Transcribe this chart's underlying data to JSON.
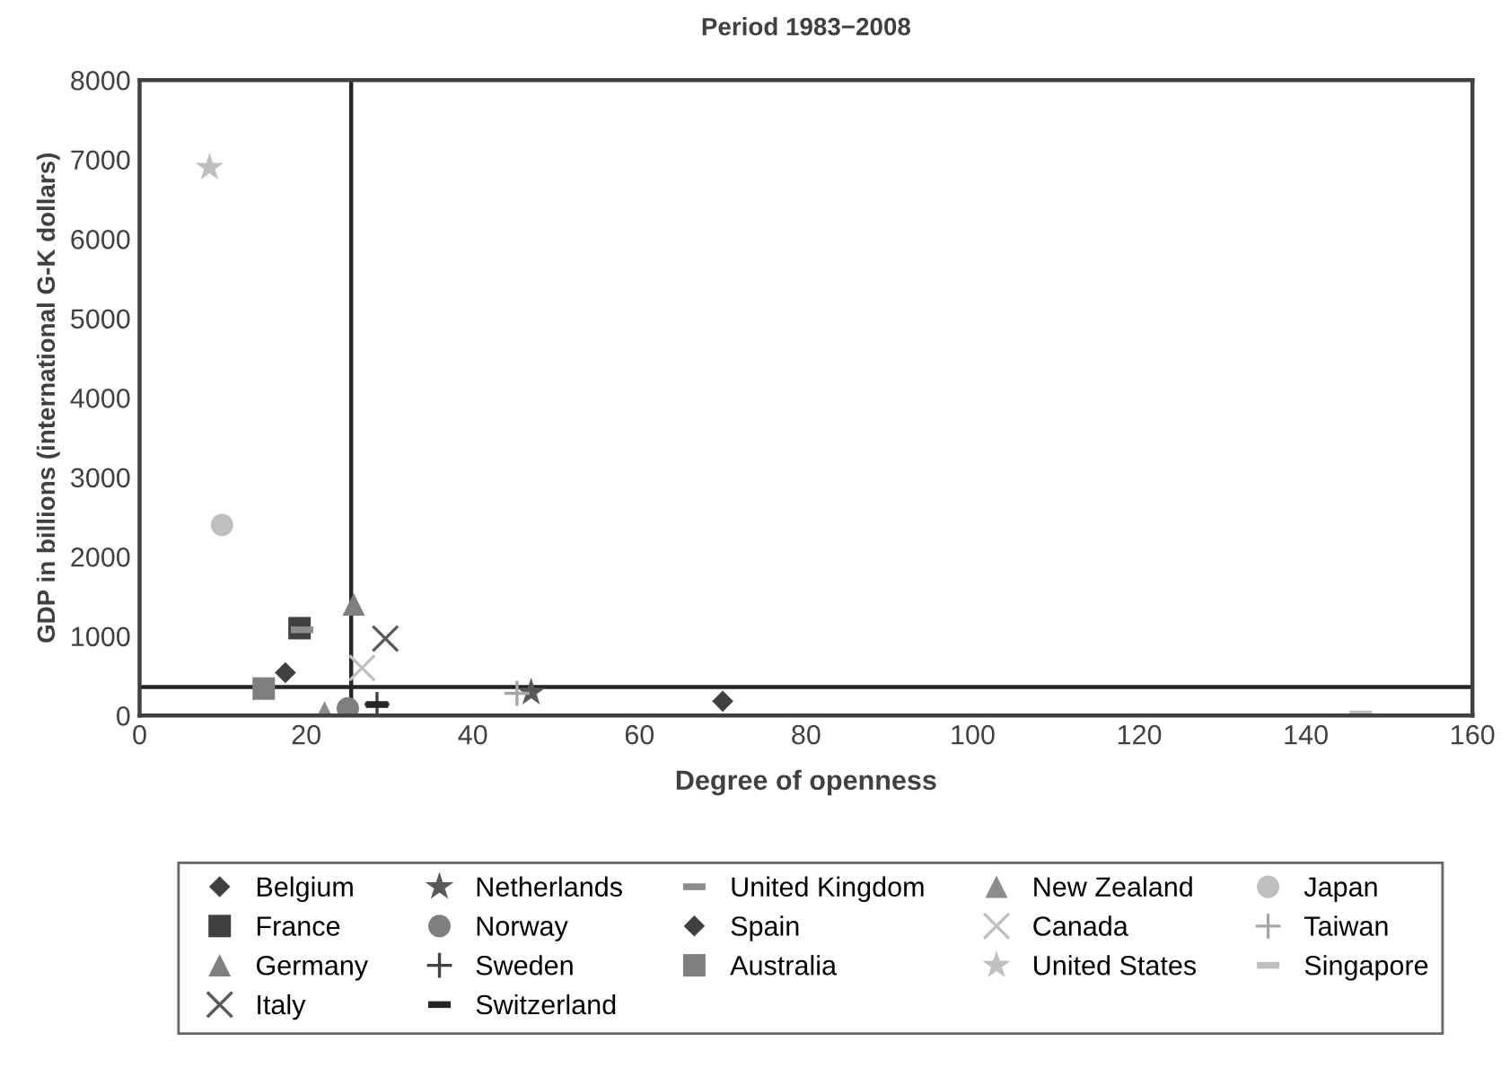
{
  "chart_data": {
    "type": "scatter",
    "title": "Period 1983−2008",
    "xlabel": "Degree of openness",
    "ylabel": "GDP in billions (international G-K dollars)",
    "xlim": [
      0,
      160
    ],
    "xticks": [
      0,
      20,
      40,
      60,
      80,
      100,
      120,
      140,
      160
    ],
    "ylim": [
      0,
      8000
    ],
    "yticks": [
      0,
      1000,
      2000,
      3000,
      4000,
      5000,
      6000,
      7000,
      8000
    ],
    "grid": false,
    "legend": "bottom",
    "ref_lines": [
      {
        "axis": "x",
        "value": 25.4,
        "color": "#262626"
      },
      {
        "axis": "y",
        "value": 360,
        "color": "#262626"
      }
    ],
    "series": [
      {
        "name": "Belgium",
        "color": "#404040",
        "marker": "diamond",
        "x": [
          70
        ],
        "values": [
          180
        ]
      },
      {
        "name": "France",
        "color": "#404040",
        "marker": "square",
        "x": [
          19.2
        ],
        "values": [
          1100
        ]
      },
      {
        "name": "Germany",
        "color": "#7f7f7f",
        "marker": "triangle",
        "x": [
          25.7
        ],
        "values": [
          1400
        ]
      },
      {
        "name": "Italy",
        "color": "#595959",
        "marker": "cross",
        "x": [
          29.5
        ],
        "values": [
          970
        ]
      },
      {
        "name": "Netherlands",
        "color": "#595959",
        "marker": "star",
        "x": [
          47
        ],
        "values": [
          290
        ]
      },
      {
        "name": "Norway",
        "color": "#7f7f7f",
        "marker": "circle",
        "x": [
          25
        ],
        "values": [
          90
        ]
      },
      {
        "name": "Sweden",
        "color": "#404040",
        "marker": "plus",
        "x": [
          28.5
        ],
        "values": [
          140
        ]
      },
      {
        "name": "Switzerland",
        "color": "#262626",
        "x": [
          28.5
        ],
        "values": [
          140
        ]
      },
      {
        "name": "United Kingdom",
        "color": "#8c8c8c",
        "x": [
          19.5
        ],
        "values": [
          1080
        ]
      },
      {
        "name": "Spain",
        "color": "#404040",
        "marker": "diamond",
        "x": [
          17.5
        ],
        "values": [
          540
        ]
      },
      {
        "name": "Australia",
        "color": "#7f7f7f",
        "marker": "square",
        "x": [
          14.9
        ],
        "values": [
          340
        ]
      },
      {
        "name": "New Zealand",
        "color": "#8c8c8c",
        "marker": "triangle",
        "x": [
          22.2
        ],
        "values": [
          40
        ]
      },
      {
        "name": "Canada",
        "color": "#bfbfbf",
        "marker": "cross",
        "x": [
          26.7
        ],
        "values": [
          600
        ]
      },
      {
        "name": "United States",
        "color": "#bfbfbf",
        "marker": "star",
        "x": [
          8.4
        ],
        "values": [
          6900
        ]
      },
      {
        "name": "Japan",
        "color": "#bfbfbf",
        "marker": "circle",
        "x": [
          9.9
        ],
        "values": [
          2400
        ]
      },
      {
        "name": "Taiwan",
        "color": "#a6a6a6",
        "marker": "plus",
        "x": [
          45.3
        ],
        "values": [
          280
        ]
      },
      {
        "name": "Singapore",
        "color": "#bfbfbf",
        "x": [
          146.6
        ],
        "values": [
          20
        ]
      }
    ]
  }
}
